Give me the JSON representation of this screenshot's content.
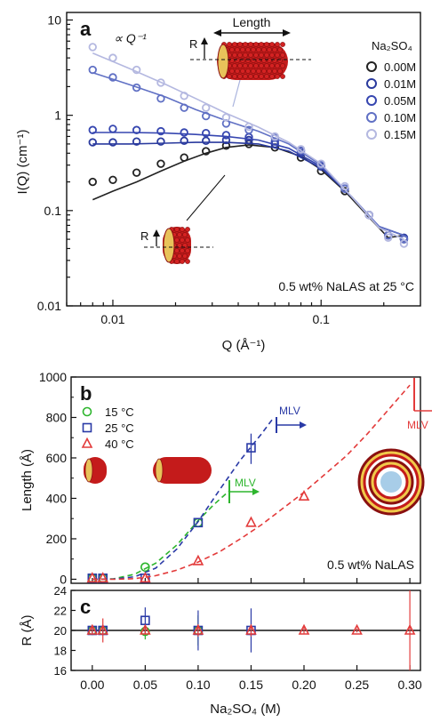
{
  "colors": {
    "c000": "#222222",
    "c001": "#2a3a9e",
    "c005": "#3646b0",
    "c010": "#6070c4",
    "c015": "#b4b8e0",
    "green": "#2db52d",
    "blue": "#2a3aa6",
    "red": "#e33b3b",
    "black": "#111111",
    "bead": "#c41b1b"
  },
  "panel_a": {
    "label": "a",
    "slope_label": "∝ Q⁻¹",
    "length_label": "Length",
    "r_label_top": "R",
    "r_label_bottom": "R",
    "legend_title": "Na₂SO₄",
    "note": "0.5 wt% NaLAS at 25 °C"
  },
  "panel_b": {
    "label": "b",
    "note": "0.5 wt% NaLAS",
    "mlv_blue": "MLV",
    "mlv_green": "MLV",
    "mlv_red": "MLV"
  },
  "panel_c": {
    "label": "c"
  },
  "chart_data": [
    {
      "type": "scatter",
      "panel": "a",
      "xlabel": "Q (Å⁻¹)",
      "ylabel": "I(Q) (cm⁻¹)",
      "xscale": "log",
      "yscale": "log",
      "xlim": [
        0.006,
        0.3
      ],
      "ylim": [
        0.01,
        12
      ],
      "xticks": [
        0.01,
        0.1
      ],
      "xticklabels": [
        "0.01",
        "0.1"
      ],
      "yticks": [
        0.01,
        0.1,
        1,
        10
      ],
      "yticklabels": [
        "0.01",
        "0.1",
        "1",
        "10"
      ],
      "legend_position": "top-right",
      "series": [
        {
          "name": "0.00M",
          "color": "#222222",
          "x": [
            0.008,
            0.01,
            0.013,
            0.017,
            0.022,
            0.028,
            0.035,
            0.045,
            0.06,
            0.08,
            0.1,
            0.13,
            0.17,
            0.21,
            0.25
          ],
          "y": [
            0.2,
            0.21,
            0.25,
            0.31,
            0.36,
            0.42,
            0.48,
            0.5,
            0.46,
            0.36,
            0.26,
            0.16,
            0.09,
            0.055,
            0.05
          ],
          "fit_x": [
            0.008,
            0.01,
            0.013,
            0.017,
            0.022,
            0.028,
            0.035,
            0.045,
            0.06,
            0.08,
            0.1,
            0.13,
            0.17,
            0.21,
            0.25
          ],
          "fit_y": [
            0.13,
            0.16,
            0.2,
            0.26,
            0.33,
            0.4,
            0.46,
            0.49,
            0.46,
            0.37,
            0.27,
            0.16,
            0.085,
            0.052,
            0.055
          ]
        },
        {
          "name": "0.01M",
          "color": "#2a3a9e",
          "x": [
            0.008,
            0.01,
            0.013,
            0.017,
            0.022,
            0.028,
            0.035,
            0.045,
            0.06,
            0.08,
            0.1,
            0.13,
            0.17,
            0.21,
            0.25
          ],
          "y": [
            0.52,
            0.52,
            0.53,
            0.53,
            0.54,
            0.54,
            0.55,
            0.55,
            0.5,
            0.4,
            0.29,
            0.17,
            0.09,
            0.055,
            0.052
          ],
          "fit_x": [
            0.008,
            0.012,
            0.018,
            0.025,
            0.035,
            0.05,
            0.07,
            0.1,
            0.14,
            0.19,
            0.25
          ],
          "fit_y": [
            0.5,
            0.5,
            0.51,
            0.52,
            0.52,
            0.5,
            0.42,
            0.28,
            0.14,
            0.068,
            0.055
          ]
        },
        {
          "name": "0.05M",
          "color": "#3646b0",
          "x": [
            0.008,
            0.01,
            0.013,
            0.017,
            0.022,
            0.028,
            0.035,
            0.045,
            0.06,
            0.08,
            0.1,
            0.13,
            0.17,
            0.21,
            0.25
          ],
          "y": [
            0.7,
            0.72,
            0.7,
            0.68,
            0.66,
            0.65,
            0.62,
            0.59,
            0.53,
            0.42,
            0.3,
            0.17,
            0.09,
            0.055,
            0.05
          ],
          "fit_x": [
            0.008,
            0.012,
            0.018,
            0.025,
            0.035,
            0.05,
            0.07,
            0.1,
            0.14,
            0.19,
            0.25
          ],
          "fit_y": [
            0.66,
            0.66,
            0.65,
            0.63,
            0.6,
            0.55,
            0.45,
            0.29,
            0.14,
            0.068,
            0.055
          ]
        },
        {
          "name": "0.10M",
          "color": "#6070c4",
          "x": [
            0.008,
            0.01,
            0.013,
            0.017,
            0.022,
            0.028,
            0.035,
            0.045,
            0.06,
            0.08,
            0.1,
            0.13,
            0.17,
            0.21,
            0.25
          ],
          "y": [
            3.0,
            2.5,
            1.95,
            1.5,
            1.2,
            0.98,
            0.82,
            0.7,
            0.58,
            0.43,
            0.3,
            0.17,
            0.09,
            0.055,
            0.05
          ],
          "fit_x": [
            0.008,
            0.012,
            0.018,
            0.025,
            0.035,
            0.05,
            0.07,
            0.1,
            0.14,
            0.19,
            0.25
          ],
          "fit_y": [
            2.8,
            2.1,
            1.55,
            1.15,
            0.88,
            0.68,
            0.5,
            0.3,
            0.14,
            0.068,
            0.055
          ]
        },
        {
          "name": "0.15M",
          "color": "#b4b8e0",
          "x": [
            0.008,
            0.01,
            0.013,
            0.017,
            0.022,
            0.028,
            0.035,
            0.045,
            0.06,
            0.08,
            0.1,
            0.13,
            0.17,
            0.21,
            0.25
          ],
          "y": [
            5.2,
            4.0,
            3.0,
            2.2,
            1.6,
            1.2,
            0.95,
            0.76,
            0.6,
            0.44,
            0.31,
            0.18,
            0.09,
            0.052,
            0.045
          ],
          "fit_x": [
            0.008,
            0.012,
            0.018,
            0.025,
            0.035,
            0.05,
            0.07,
            0.1,
            0.14,
            0.19,
            0.25
          ],
          "fit_y": [
            4.5,
            3.1,
            2.1,
            1.5,
            1.05,
            0.75,
            0.52,
            0.31,
            0.14,
            0.066,
            0.05
          ]
        }
      ]
    },
    {
      "type": "scatter",
      "panel": "b",
      "xlabel": "",
      "ylabel": "Length (Å)",
      "xlim": [
        -0.02,
        0.31
      ],
      "ylim": [
        -20,
        1000
      ],
      "yticks": [
        0,
        200,
        400,
        600,
        800,
        1000
      ],
      "yticklabels": [
        "0",
        "200",
        "400",
        "600",
        "800",
        "1000"
      ],
      "legend_position": "top-left",
      "series": [
        {
          "name": "15 °C",
          "marker": "circle",
          "color": "#2db52d",
          "x": [
            0.0,
            0.01,
            0.05,
            0.1
          ],
          "y": [
            5,
            5,
            60,
            280
          ],
          "fit_x": [
            0.0,
            0.02,
            0.04,
            0.06,
            0.08,
            0.1,
            0.115,
            0.13
          ],
          "fit_y": [
            0,
            2,
            25,
            80,
            170,
            290,
            370,
            440
          ]
        },
        {
          "name": "25 °C",
          "marker": "square",
          "color": "#2a3aa6",
          "x": [
            0.0,
            0.01,
            0.05,
            0.1,
            0.15
          ],
          "y": [
            5,
            5,
            5,
            280,
            650
          ],
          "fit_x": [
            0.0,
            0.02,
            0.04,
            0.06,
            0.08,
            0.1,
            0.12,
            0.14,
            0.16,
            0.17
          ],
          "fit_y": [
            0,
            1,
            12,
            55,
            150,
            285,
            440,
            590,
            720,
            790
          ]
        },
        {
          "name": "40 °C",
          "marker": "triangle",
          "color": "#e33b3b",
          "x": [
            0.0,
            0.01,
            0.05,
            0.1,
            0.15,
            0.2
          ],
          "y": [
            5,
            5,
            5,
            90,
            280,
            410
          ],
          "fit_x": [
            0.0,
            0.02,
            0.04,
            0.06,
            0.08,
            0.1,
            0.12,
            0.14,
            0.16,
            0.18,
            0.2,
            0.22,
            0.24,
            0.26,
            0.28,
            0.3
          ],
          "fit_y": [
            0,
            0,
            3,
            18,
            45,
            85,
            135,
            200,
            270,
            350,
            430,
            520,
            610,
            720,
            840,
            960
          ]
        }
      ],
      "mlv_transitions": [
        {
          "color": "#2a3aa6",
          "x": 0.17,
          "y": 800
        },
        {
          "color": "#2db52d",
          "x": 0.13,
          "y": 440
        },
        {
          "color": "#e33b3b",
          "x": 0.295,
          "y": 960
        }
      ]
    },
    {
      "type": "scatter",
      "panel": "c",
      "xlabel": "Na₂SO₄ (M)",
      "ylabel": "R (Å)",
      "xlim": [
        -0.02,
        0.31
      ],
      "ylim": [
        16,
        24
      ],
      "yticks": [
        16,
        18,
        20,
        22,
        24
      ],
      "yticklabels": [
        "16",
        "18",
        "20",
        "22",
        "24"
      ],
      "xticks": [
        0.0,
        0.05,
        0.1,
        0.15,
        0.2,
        0.25,
        0.3
      ],
      "xticklabels": [
        "0.00",
        "0.05",
        "0.10",
        "0.15",
        "0.20",
        "0.25",
        "0.30"
      ],
      "reference_line": 20,
      "series": [
        {
          "name": "15 °C",
          "marker": "circle",
          "color": "#2db52d",
          "x": [
            0.0,
            0.01,
            0.05,
            0.1
          ],
          "y": [
            20,
            20,
            19.9,
            20
          ],
          "err": [
            0.3,
            0.3,
            0.8,
            1.5
          ]
        },
        {
          "name": "25 °C",
          "marker": "square",
          "color": "#2a3aa6",
          "x": [
            0.0,
            0.01,
            0.05,
            0.1,
            0.15
          ],
          "y": [
            20,
            20,
            21,
            20,
            20
          ],
          "err": [
            0.3,
            0.3,
            1.3,
            2.0,
            2.2
          ]
        },
        {
          "name": "40 °C",
          "marker": "triangle",
          "color": "#e33b3b",
          "x": [
            0.0,
            0.01,
            0.05,
            0.1,
            0.15,
            0.2,
            0.25,
            0.3
          ],
          "y": [
            20,
            20,
            20,
            20,
            20,
            20,
            20,
            20
          ],
          "err": [
            0.3,
            1.2,
            0.3,
            0.6,
            0.6,
            0.3,
            0.2,
            4.0
          ]
        }
      ]
    }
  ]
}
